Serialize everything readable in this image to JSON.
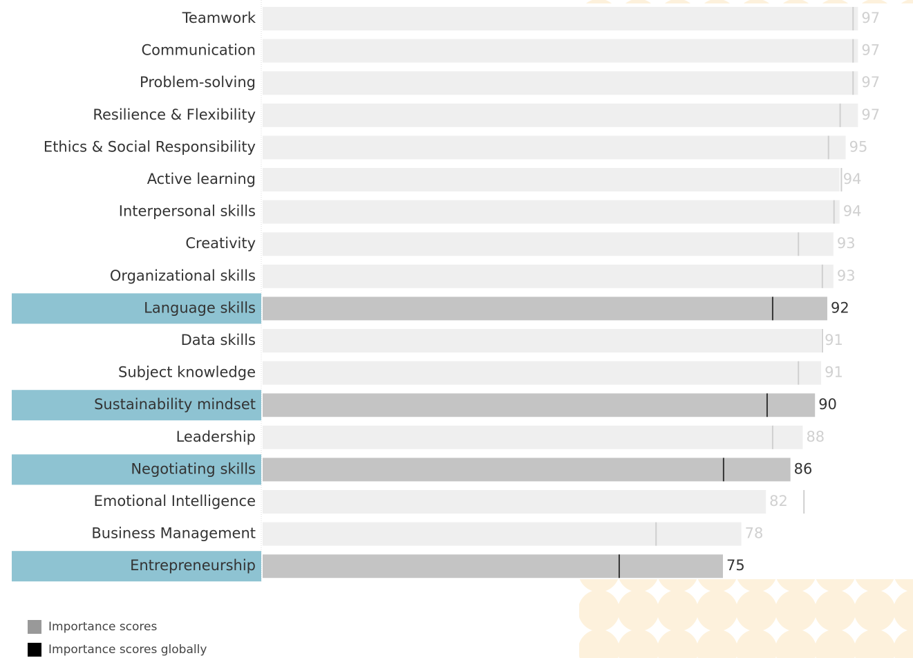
{
  "chart_data": {
    "type": "bar",
    "orientation": "horizontal",
    "categories": [
      "Teamwork",
      "Communication",
      "Problem-solving",
      "Resilience & Flexibility",
      "Ethics & Social Responsibility",
      "Active learning",
      "Interpersonal skills",
      "Creativity",
      "Organizational skills",
      "Language skills",
      "Data skills",
      "Subject knowledge",
      "Sustainability mindset",
      "Leadership",
      "Negotiating skills",
      "Emotional Intelligence",
      "Business Management",
      "Entrepreneurship"
    ],
    "highlight": [
      false,
      false,
      false,
      false,
      false,
      false,
      false,
      false,
      false,
      true,
      false,
      false,
      true,
      false,
      true,
      false,
      false,
      true
    ],
    "series": [
      {
        "name": "Importance scores",
        "color": "#999999",
        "values": [
          97,
          97,
          97,
          97,
          95,
          94,
          94,
          93,
          93,
          92,
          91,
          91,
          90,
          88,
          86,
          82,
          78,
          75
        ]
      },
      {
        "name": "Importance scores globally",
        "color": "#000000",
        "values": [
          96.2,
          96.2,
          96.2,
          94.1,
          92.2,
          94.3,
          93.1,
          87.3,
          91.2,
          83.1,
          91.2,
          87.3,
          82.2,
          83.1,
          75.1,
          88.2,
          64.1,
          58.1
        ]
      }
    ],
    "xlim": [
      0,
      100
    ]
  }
}
